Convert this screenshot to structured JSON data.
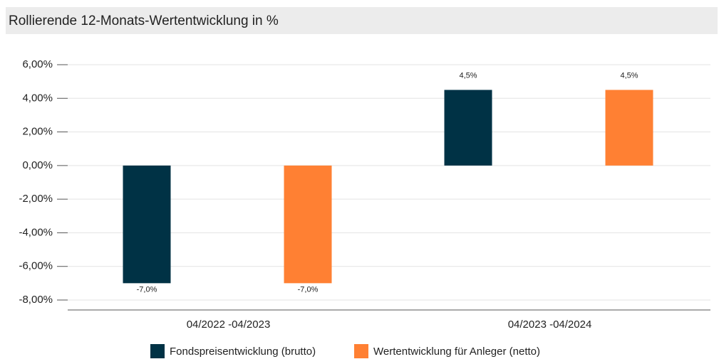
{
  "chart_data": {
    "type": "bar",
    "title": "Rollierende 12-Monats-Wertentwicklung in %",
    "categories": [
      "04/2022 -04/2023",
      "04/2023 -04/2024"
    ],
    "series": [
      {
        "name": "Fondspreisentwicklung (brutto)",
        "color": "#003245",
        "values": [
          -7.0,
          4.5
        ],
        "value_labels": [
          "-7,0%",
          "4,5%"
        ]
      },
      {
        "name": "Wertentwicklung für Anleger (netto)",
        "color": "#ff8033",
        "values": [
          -7.0,
          4.5
        ],
        "value_labels": [
          "-7,0%",
          "4,5%"
        ]
      }
    ],
    "ylim": [
      -8,
      6
    ],
    "yticks": [
      {
        "value": -8,
        "label": "-8,00%"
      },
      {
        "value": -6,
        "label": "-6,00%"
      },
      {
        "value": -4,
        "label": "-4,00%"
      },
      {
        "value": -2,
        "label": "-2,00%"
      },
      {
        "value": 0,
        "label": "0,00%"
      },
      {
        "value": 2,
        "label": "2,00%"
      },
      {
        "value": 4,
        "label": "4,00%"
      },
      {
        "value": 6,
        "label": "6,00%"
      }
    ],
    "grid": true
  }
}
